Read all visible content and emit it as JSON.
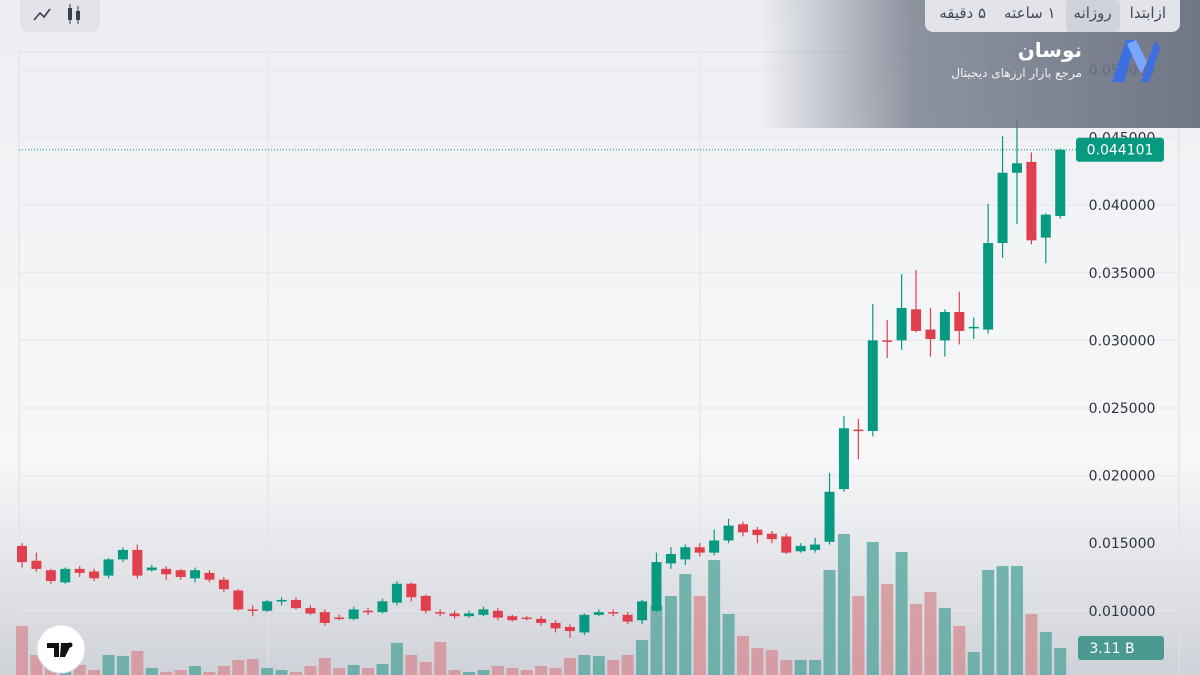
{
  "toolbar": {
    "tabs": [
      "۵ دقیقه",
      "۱ ساعته",
      "روزانه",
      "ازابتدا"
    ],
    "selected": 2
  },
  "brand": {
    "name": "نوسان",
    "tagline": "مرجع بازار ارزهای دیجیتال"
  },
  "chart_data": {
    "type": "candlestick",
    "open": [
      0.0148,
      0.0137,
      0.013,
      0.0121,
      0.0131,
      0.0129,
      0.0126,
      0.0138,
      0.0145,
      0.013,
      0.0131,
      0.013,
      0.0124,
      0.0128,
      0.0123,
      0.0115,
      0.0101,
      0.01,
      0.0107,
      0.0108,
      0.0102,
      0.0099,
      0.0095,
      0.0094,
      0.01,
      0.0099,
      0.0106,
      0.012,
      0.0111,
      0.0099,
      0.0098,
      0.0096,
      0.0097,
      0.01,
      0.0096,
      0.0095,
      0.0094,
      0.0091,
      0.0088,
      0.0084,
      0.0097,
      0.0099,
      0.0097,
      0.0093,
      0.01,
      0.0135,
      0.0138,
      0.0147,
      0.0143,
      0.0152,
      0.0164,
      0.016,
      0.0157,
      0.0155,
      0.0144,
      0.0145,
      0.0151,
      0.019,
      0.0234,
      0.0233,
      0.03,
      0.03,
      0.0323,
      0.0308,
      0.03,
      0.0321,
      0.0309,
      0.0308,
      0.0372,
      0.0424,
      0.0432,
      0.0376,
      0.0392
    ],
    "high": [
      0.015,
      0.0143,
      0.0131,
      0.0132,
      0.0133,
      0.0131,
      0.0139,
      0.0147,
      0.0149,
      0.0134,
      0.0133,
      0.0131,
      0.0132,
      0.013,
      0.0125,
      0.0116,
      0.0104,
      0.0108,
      0.011,
      0.011,
      0.0104,
      0.0101,
      0.0097,
      0.0103,
      0.0102,
      0.0109,
      0.0122,
      0.0121,
      0.0112,
      0.0101,
      0.01,
      0.01,
      0.0103,
      0.0102,
      0.0097,
      0.0096,
      0.0096,
      0.0093,
      0.009,
      0.0098,
      0.0101,
      0.0101,
      0.0099,
      0.0108,
      0.0143,
      0.0147,
      0.0149,
      0.015,
      0.016,
      0.0168,
      0.0166,
      0.0162,
      0.0159,
      0.0157,
      0.015,
      0.0154,
      0.0202,
      0.0244,
      0.0242,
      0.0327,
      0.0315,
      0.0349,
      0.0352,
      0.0324,
      0.0323,
      0.0336,
      0.0317,
      0.0401,
      0.0451,
      0.0464,
      0.0439,
      0.0394,
      0.0442
    ],
    "low": [
      0.0132,
      0.0129,
      0.012,
      0.012,
      0.0125,
      0.0122,
      0.0124,
      0.0136,
      0.0124,
      0.0129,
      0.0123,
      0.0123,
      0.0121,
      0.0121,
      0.0114,
      0.01,
      0.0096,
      0.0099,
      0.0104,
      0.0101,
      0.0097,
      0.0089,
      0.0093,
      0.0093,
      0.0097,
      0.0098,
      0.0104,
      0.0107,
      0.0098,
      0.0096,
      0.0094,
      0.0095,
      0.0096,
      0.0093,
      0.0092,
      0.0093,
      0.0089,
      0.0084,
      0.008,
      0.0082,
      0.0096,
      0.0096,
      0.009,
      0.009,
      0.0099,
      0.0131,
      0.0134,
      0.014,
      0.0141,
      0.015,
      0.0155,
      0.015,
      0.015,
      0.0142,
      0.0143,
      0.0143,
      0.0149,
      0.0188,
      0.0212,
      0.0229,
      0.0287,
      0.0293,
      0.0306,
      0.0288,
      0.0288,
      0.0297,
      0.0301,
      0.0305,
      0.0361,
      0.0386,
      0.0371,
      0.0357,
      0.039
    ],
    "close": [
      0.0136,
      0.0131,
      0.0122,
      0.0131,
      0.0128,
      0.0124,
      0.0138,
      0.0145,
      0.0126,
      0.0132,
      0.0127,
      0.0125,
      0.013,
      0.0123,
      0.0116,
      0.0101,
      0.01,
      0.0107,
      0.0108,
      0.0102,
      0.0098,
      0.0091,
      0.0094,
      0.0101,
      0.0099,
      0.0107,
      0.012,
      0.011,
      0.01,
      0.0098,
      0.0096,
      0.0098,
      0.0101,
      0.0095,
      0.0093,
      0.0094,
      0.0091,
      0.0087,
      0.0085,
      0.0097,
      0.0099,
      0.0098,
      0.0092,
      0.0107,
      0.0136,
      0.0142,
      0.0147,
      0.0143,
      0.0152,
      0.0163,
      0.0158,
      0.0156,
      0.0153,
      0.0143,
      0.0148,
      0.0149,
      0.0188,
      0.0235,
      0.0233,
      0.03,
      0.0299,
      0.0324,
      0.0307,
      0.0301,
      0.0321,
      0.0307,
      0.031,
      0.0372,
      0.0424,
      0.0431,
      0.0374,
      0.0393,
      0.044101
    ],
    "colors": {
      "up": "#089981",
      "down": "#e0404e",
      "up_volume": "#4fa39a",
      "down_volume": "#d58a92"
    },
    "ylim": [
      0.00525,
      0.05133
    ],
    "yticks": [
      {
        "value": 0.01,
        "label": "0.010000"
      },
      {
        "value": 0.015,
        "label": "0.015000"
      },
      {
        "value": 0.02,
        "label": "0.020000"
      },
      {
        "value": 0.025,
        "label": "0.025000"
      },
      {
        "value": 0.03,
        "label": "0.030000"
      },
      {
        "value": 0.035,
        "label": "0.035000"
      },
      {
        "value": 0.04,
        "label": "0.040000"
      },
      {
        "value": 0.045,
        "label": "0.045000"
      },
      {
        "value": 0.05,
        "label": "0.050000"
      }
    ],
    "grid": true,
    "last_price_line": true,
    "volume": {
      "values": [
        5.25,
        2.43,
        1.94,
        1.75,
        1.46,
        0.97,
        2.43,
        2.33,
        2.82,
        1.17,
        0.78,
        0.97,
        1.36,
        0.78,
        1.36,
        1.94,
        2.04,
        1.17,
        0.97,
        0.78,
        1.36,
        2.14,
        1.17,
        1.46,
        1.17,
        1.56,
        3.6,
        2.43,
        1.75,
        3.69,
        0.97,
        0.78,
        0.97,
        1.36,
        1.17,
        0.97,
        1.36,
        1.17,
        2.14,
        2.43,
        2.33,
        1.94,
        2.43,
        3.89,
        7.19,
        8.16,
        10.3,
        8.16,
        11.66,
        6.42,
        4.28,
        3.11,
        2.92,
        1.94,
        1.94,
        1.94,
        10.69,
        14.19,
        8.16,
        13.41,
        9.33,
        12.44,
        7.39,
        8.55,
        7.0,
        5.25,
        2.72,
        10.69,
        11.08,
        11.08,
        6.42,
        4.67,
        3.11
      ],
      "value_labels": [
        null,
        null,
        null,
        null,
        null,
        null,
        null,
        null,
        null,
        null,
        null,
        null,
        null,
        null,
        null,
        null,
        null,
        null,
        null,
        null,
        null,
        null,
        null,
        null,
        null,
        null,
        null,
        null,
        null,
        null,
        null,
        null,
        null,
        null,
        null,
        null,
        null,
        null,
        null,
        null,
        null,
        null,
        null,
        null,
        null,
        null,
        null,
        null,
        null,
        null,
        null,
        null,
        null,
        null,
        null,
        null,
        null,
        null,
        null,
        null,
        null,
        null,
        null,
        null,
        null,
        null,
        null,
        null,
        null,
        null,
        null,
        null,
        "3.11 B"
      ]
    }
  }
}
